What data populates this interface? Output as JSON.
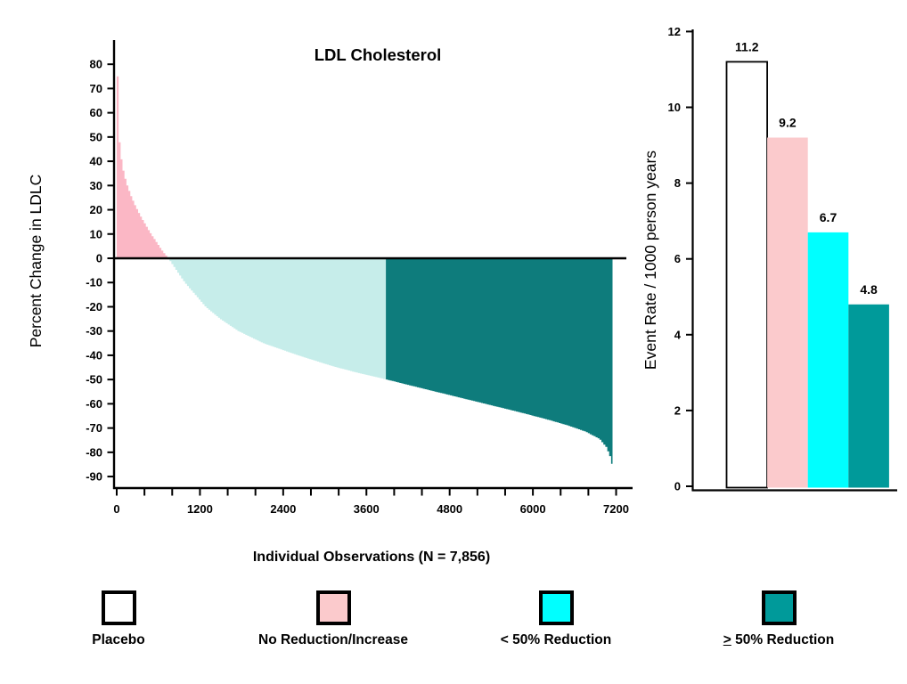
{
  "chart_data": [
    {
      "type": "area",
      "subtype": "waterfall-of-individual-observations",
      "title": "LDL Cholesterol",
      "xlabel": "Individual Observations (N = 7,856)",
      "ylabel": "Percent Change in LDLC",
      "xlim": [
        0,
        7500
      ],
      "ylim": [
        -95,
        88
      ],
      "yticks": [
        80,
        70,
        60,
        50,
        40,
        30,
        20,
        10,
        0,
        -10,
        -20,
        -30,
        -40,
        -50,
        -60,
        -70,
        -80,
        -90
      ],
      "xticks_labeled": [
        0,
        1200,
        2400,
        3600,
        4800,
        6000,
        7200
      ],
      "xtick_minor_step": 400,
      "x_axis_tick_end": 7400,
      "grid": false,
      "zero_line": true,
      "regions": [
        {
          "name": "No Reduction/Increase",
          "color": "#FBB7C5",
          "x_range": [
            0,
            733
          ],
          "y_side": "above-zero"
        },
        {
          "name": "< 50% Reduction",
          "color": "#C6EDEA",
          "x_range": [
            733,
            3880
          ],
          "y_side": "below-zero"
        },
        {
          "name": "≥ 50% Reduction",
          "color": "#0E7C7C",
          "x_range": [
            3880,
            7148
          ],
          "y_side": "below-zero"
        }
      ],
      "curve_points": [
        [
          0,
          75
        ],
        [
          8,
          62
        ],
        [
          18,
          52
        ],
        [
          30,
          47
        ],
        [
          45,
          43
        ],
        [
          70,
          38
        ],
        [
          100,
          34
        ],
        [
          140,
          30
        ],
        [
          190,
          26
        ],
        [
          250,
          22
        ],
        [
          320,
          18
        ],
        [
          390,
          14.5
        ],
        [
          460,
          11
        ],
        [
          530,
          8
        ],
        [
          600,
          5
        ],
        [
          660,
          2.5
        ],
        [
          733,
          0
        ],
        [
          850,
          -5
        ],
        [
          970,
          -10
        ],
        [
          1120,
          -15
        ],
        [
          1270,
          -20
        ],
        [
          1480,
          -25
        ],
        [
          1740,
          -30
        ],
        [
          2100,
          -35
        ],
        [
          2600,
          -40
        ],
        [
          3100,
          -44.5
        ],
        [
          3500,
          -47.5
        ],
        [
          3880,
          -50
        ],
        [
          4300,
          -53
        ],
        [
          4800,
          -56.5
        ],
        [
          5300,
          -60
        ],
        [
          5800,
          -63.5
        ],
        [
          6200,
          -66.5
        ],
        [
          6500,
          -69
        ],
        [
          6750,
          -71.5
        ],
        [
          6950,
          -74.5
        ],
        [
          7050,
          -78
        ],
        [
          7120,
          -83
        ],
        [
          7148,
          -89
        ]
      ]
    },
    {
      "type": "bar",
      "ylabel": "Event Rate / 1000 person years",
      "categories": [
        "Placebo",
        "No Reduction/Increase",
        "< 50% Reduction",
        "≥ 50% Reduction"
      ],
      "values": [
        11.2,
        9.2,
        6.7,
        4.8
      ],
      "data_labels": [
        "11.2",
        "9.2",
        "6.7",
        "4.8"
      ],
      "colors": [
        "#FFFFFF",
        "#FBCACC",
        "#00FFFF",
        "#009A9A"
      ],
      "bar_borders": [
        "#000000",
        "none",
        "none",
        "none"
      ],
      "ylim": [
        0,
        12
      ],
      "yticks": [
        0,
        2,
        4,
        6,
        8,
        10,
        12
      ],
      "grid": false,
      "xticks": []
    }
  ],
  "legend": {
    "position": "bottom",
    "items": [
      {
        "label": "Placebo",
        "color": "#FFFFFF"
      },
      {
        "label": "No Reduction/Increase",
        "color": "#FBCACC"
      },
      {
        "label": "< 50% Reduction",
        "color": "#00FFFF"
      },
      {
        "label": "50% Reduction",
        "prefix": ">",
        "prefix_meaning": "≥",
        "color": "#009A9A"
      }
    ]
  }
}
